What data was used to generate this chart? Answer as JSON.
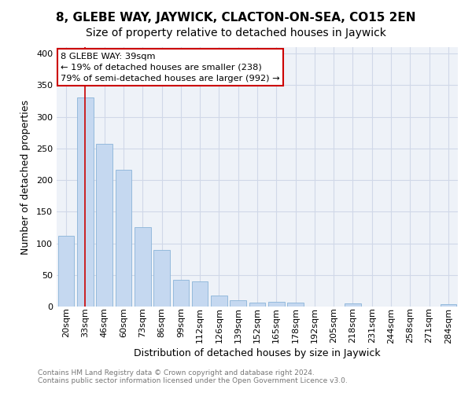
{
  "title": "8, GLEBE WAY, JAYWICK, CLACTON-ON-SEA, CO15 2EN",
  "subtitle": "Size of property relative to detached houses in Jaywick",
  "xlabel": "Distribution of detached houses by size in Jaywick",
  "ylabel": "Number of detached properties",
  "bar_labels": [
    "20sqm",
    "33sqm",
    "46sqm",
    "60sqm",
    "73sqm",
    "86sqm",
    "99sqm",
    "112sqm",
    "126sqm",
    "139sqm",
    "152sqm",
    "165sqm",
    "178sqm",
    "192sqm",
    "205sqm",
    "218sqm",
    "231sqm",
    "244sqm",
    "258sqm",
    "271sqm",
    "284sqm"
  ],
  "bar_heights": [
    112,
    330,
    257,
    216,
    126,
    90,
    42,
    40,
    17,
    10,
    6,
    7,
    6,
    0,
    0,
    5,
    0,
    0,
    0,
    0,
    4
  ],
  "bar_color": "#c5d8f0",
  "bar_edge_color": "#8ab4d8",
  "vline_x_index": 1,
  "vline_color": "#cc0000",
  "annotation_text": "8 GLEBE WAY: 39sqm\n← 19% of detached houses are smaller (238)\n79% of semi-detached houses are larger (992) →",
  "annotation_box_facecolor": "#ffffff",
  "annotation_box_edgecolor": "#cc0000",
  "ylim": [
    0,
    410
  ],
  "yticks": [
    0,
    50,
    100,
    150,
    200,
    250,
    300,
    350,
    400
  ],
  "footer_line1": "Contains HM Land Registry data © Crown copyright and database right 2024.",
  "footer_line2": "Contains public sector information licensed under the Open Government Licence v3.0.",
  "bg_color": "#ffffff",
  "plot_bg_color": "#eef2f8",
  "grid_color": "#d0d8e8",
  "title_fontsize": 11,
  "subtitle_fontsize": 10,
  "axis_label_fontsize": 9,
  "tick_fontsize": 8
}
